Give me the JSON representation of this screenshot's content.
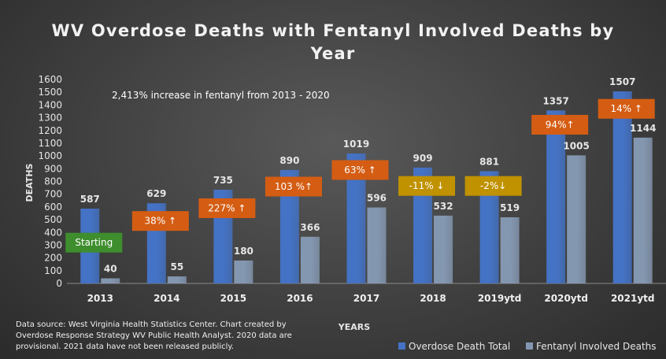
{
  "chart_data": {
    "type": "bar",
    "title_lines": [
      "WV Overdose Deaths with Fentanyl Involved Deaths by",
      "Year"
    ],
    "xlabel": "YEARS",
    "ylabel": "DEATHS",
    "ylim": [
      0,
      1600
    ],
    "yticks": [
      0,
      100,
      200,
      300,
      400,
      500,
      600,
      700,
      800,
      900,
      1000,
      1100,
      1200,
      1300,
      1400,
      1500,
      1600
    ],
    "categories": [
      "2013",
      "2014",
      "2015",
      "2016",
      "2017",
      "2018",
      "2019ytd",
      "2020ytd",
      "2021ytd"
    ],
    "series": [
      {
        "name": "Overdose Death Total",
        "color": "#4472c4",
        "values": [
          587,
          629,
          735,
          890,
          1019,
          909,
          881,
          1357,
          1507
        ]
      },
      {
        "name": "Fentanyl Involved Deaths",
        "color": "#8497b0",
        "values": [
          40,
          55,
          180,
          366,
          596,
          532,
          519,
          1005,
          1144
        ]
      }
    ],
    "legend_position": "bottom-right",
    "grid": false,
    "annotation": "2,413% increase in fentanyl from 2013 - 2020",
    "callouts": [
      {
        "category": "2013",
        "label": "Starting",
        "color": "#3e8e2e",
        "y": 320
      },
      {
        "category": "2014",
        "label": "38% ↑",
        "color": "#d45d13",
        "y": 490
      },
      {
        "category": "2015",
        "label": "227% ↑",
        "color": "#d45d13",
        "y": 590
      },
      {
        "category": "2016",
        "label": "103 %↑",
        "color": "#d45d13",
        "y": 760
      },
      {
        "category": "2017",
        "label": "63% ↑",
        "color": "#d45d13",
        "y": 890
      },
      {
        "category": "2018",
        "label": "-11% ↓",
        "color": "#c09200",
        "y": 765
      },
      {
        "category": "2019ytd",
        "label": "-2%↓",
        "color": "#c09200",
        "y": 765
      },
      {
        "category": "2020ytd",
        "label": "94%↑",
        "color": "#d45d13",
        "y": 1245
      },
      {
        "category": "2021ytd",
        "label": "14% ↑",
        "color": "#d45d13",
        "y": 1370
      }
    ],
    "source_note": [
      "Data source: West Virginia Health Statistics Center. Chart created by",
      "Overdose Response Strategy WV Public Health Analyst. 2020 data are",
      "provisional. 2021 data have not been released publicly."
    ]
  }
}
